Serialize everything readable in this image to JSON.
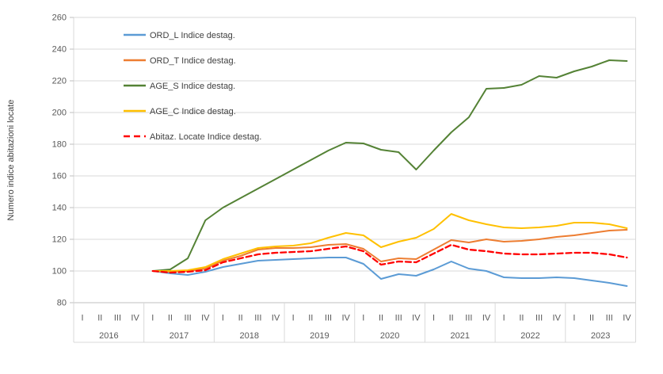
{
  "chart_data": {
    "type": "line",
    "title": "",
    "xlabel": "",
    "ylabel": "Numero indice abitazioni locate",
    "ylim": [
      80,
      260
    ],
    "y_ticks": [
      80,
      100,
      120,
      140,
      160,
      180,
      200,
      220,
      240,
      260
    ],
    "years": [
      "2016",
      "2017",
      "2018",
      "2019",
      "2020",
      "2021",
      "2022",
      "2023"
    ],
    "quarters": [
      "I",
      "II",
      "III",
      "IV"
    ],
    "grid": true,
    "legend_position": "inside-top-left",
    "axis_text_color": "#595959",
    "grid_color": "#d9d9d9",
    "axis_line_color": "#bfbfbf",
    "series": [
      {
        "name": "ORD_L Indice destag.",
        "color": "#5B9BD5",
        "line_style": "solid",
        "values": [
          null,
          null,
          null,
          null,
          100,
          98.5,
          97.5,
          99.5,
          102.5,
          104.5,
          106.5,
          107,
          107.5,
          108,
          108.5,
          108.5,
          104.5,
          95,
          98,
          97,
          101,
          106,
          101.5,
          100,
          96,
          95.5,
          95.5,
          96,
          95.5,
          94,
          92.5,
          90.5
        ]
      },
      {
        "name": "ORD_T Indice destag.",
        "color": "#ED7D31",
        "line_style": "solid",
        "values": [
          null,
          null,
          null,
          null,
          100,
          99.5,
          100,
          101.5,
          106.5,
          109.5,
          113.5,
          114.5,
          114.5,
          115,
          116.5,
          117,
          114,
          106,
          108,
          107.5,
          113.5,
          119.5,
          118,
          120,
          118.5,
          119,
          120,
          121.5,
          122.5,
          124,
          125.5,
          126
        ]
      },
      {
        "name": "AGE_S Indice destag.",
        "color": "#548235",
        "line_style": "solid",
        "values": [
          null,
          null,
          null,
          null,
          100,
          101,
          108,
          132,
          140,
          146,
          152,
          158,
          164,
          170,
          176,
          181,
          180.5,
          176.5,
          175,
          164,
          176,
          187.5,
          197,
          215,
          215.5,
          217.5,
          223,
          222,
          226,
          229,
          233,
          232.5
        ]
      },
      {
        "name": "AGE_C Indice  destag.",
        "color": "#FFC000",
        "line_style": "solid",
        "values": [
          null,
          null,
          null,
          null,
          100,
          100,
          100.5,
          102.5,
          107.5,
          111,
          114.5,
          115.5,
          116,
          117.5,
          121,
          124,
          122.5,
          115,
          118.5,
          121,
          126.5,
          136,
          132,
          129.5,
          127.5,
          127,
          127.5,
          128.5,
          130.5,
          130.5,
          129.5,
          127
        ]
      },
      {
        "name": "Abitaz. Locate Indice destag.",
        "color": "#FF0000",
        "line_style": "dashed",
        "values": [
          null,
          null,
          null,
          null,
          100,
          99,
          99.5,
          100.5,
          105.5,
          108,
          110.5,
          111.5,
          112,
          112.5,
          114,
          115.5,
          112.5,
          104,
          106,
          105.5,
          111,
          116.5,
          113.5,
          112.5,
          111,
          110.5,
          110.5,
          111,
          111.5,
          111.5,
          110.5,
          108.5
        ]
      }
    ]
  }
}
